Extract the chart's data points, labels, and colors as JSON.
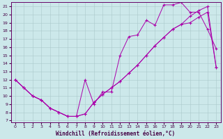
{
  "xlabel": "Windchill (Refroidissement éolien,°C)",
  "xlim": [
    -0.5,
    23.5
  ],
  "ylim": [
    6.8,
    21.5
  ],
  "xticks": [
    0,
    1,
    2,
    3,
    4,
    5,
    6,
    7,
    8,
    9,
    10,
    11,
    12,
    13,
    14,
    15,
    16,
    17,
    18,
    19,
    20,
    21,
    22,
    23
  ],
  "yticks": [
    7,
    8,
    9,
    10,
    11,
    12,
    13,
    14,
    15,
    16,
    17,
    18,
    19,
    20,
    21
  ],
  "bg_color": "#cce8ea",
  "line_color": "#aa00aa",
  "grid_color": "#aac8ca",
  "line1_x": [
    0,
    1,
    2,
    3,
    4,
    5,
    6,
    7,
    8,
    9,
    10,
    11,
    12,
    13,
    14,
    15,
    16,
    17,
    18,
    19,
    20,
    21,
    22,
    23
  ],
  "line1_y": [
    12,
    11,
    10,
    9.5,
    8.5,
    8,
    7.5,
    7.5,
    12,
    9,
    10.5,
    10.5,
    15.0,
    17.3,
    17.5,
    19.3,
    18.7,
    21.2,
    21.2,
    21.5,
    20.3,
    20.3,
    18.2,
    15.8
  ],
  "line2_x": [
    0,
    1,
    2,
    3,
    4,
    5,
    6,
    7,
    8,
    9,
    10,
    11,
    12,
    13,
    14,
    15,
    16,
    17,
    18,
    19,
    20,
    21,
    22,
    23
  ],
  "line2_y": [
    12,
    11,
    10,
    9.5,
    8.5,
    8,
    7.5,
    7.5,
    7.8,
    9.2,
    10.2,
    11.0,
    11.8,
    12.8,
    13.8,
    15.0,
    16.2,
    17.2,
    18.2,
    18.8,
    19.8,
    20.5,
    21.0,
    13.5
  ],
  "line3_x": [
    0,
    1,
    2,
    3,
    4,
    5,
    6,
    7,
    8,
    9,
    10,
    11,
    12,
    13,
    14,
    15,
    16,
    17,
    18,
    19,
    20,
    21,
    22,
    23
  ],
  "line3_y": [
    12,
    11,
    10,
    9.5,
    8.5,
    8,
    7.5,
    7.5,
    7.8,
    9.2,
    10.2,
    11.0,
    11.8,
    12.8,
    13.8,
    15.0,
    16.2,
    17.2,
    18.2,
    18.8,
    19.0,
    19.7,
    20.3,
    13.5
  ]
}
